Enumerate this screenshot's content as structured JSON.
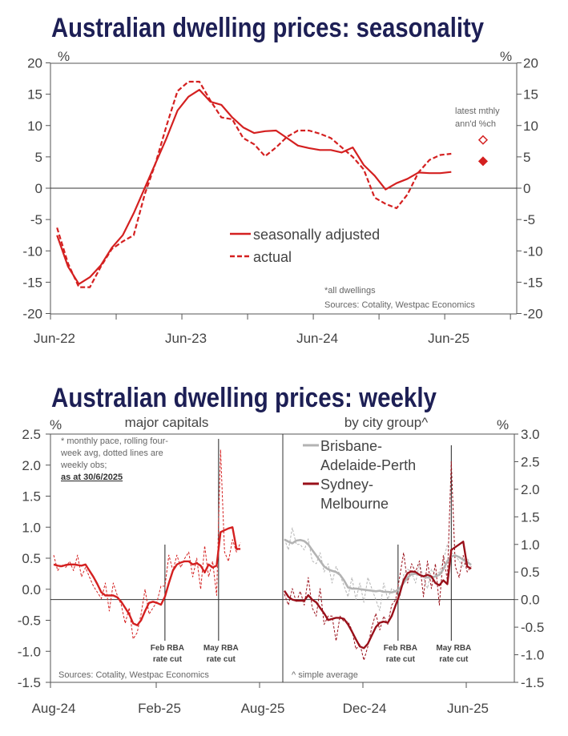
{
  "colors": {
    "red": "#d42020",
    "dark_red": "#99101a",
    "grey": "#b3b3b3",
    "title": "#1d1f55"
  },
  "chart_data": [
    {
      "type": "line",
      "title": "Australian dwelling prices: seasonality",
      "unit_left": "%",
      "unit_right": "%",
      "ylim": [
        -20,
        20
      ],
      "yticks": [
        "20",
        "15",
        "10",
        "5",
        "0",
        "-5",
        "-10",
        "-15",
        "-20"
      ],
      "xticks": [
        "Jun-22",
        "Jun-23",
        "Jun-24",
        "Jun-25"
      ],
      "x_start": "Jul-22",
      "x_frequency": "monthly",
      "series": [
        {
          "name": "seasonally adjusted",
          "style": "solid",
          "values": [
            -7.5,
            -12.5,
            -15.3,
            -14.2,
            -12.3,
            -9.5,
            -7.5,
            -4,
            0,
            4,
            8,
            12.4,
            14.6,
            15.7,
            13.8,
            13.3,
            11.3,
            9.7,
            8.8,
            9.1,
            9.2,
            8,
            6.8,
            6.4,
            6.1,
            6.1,
            5.7,
            6.5,
            3.7,
            2,
            -0.2,
            0.8,
            1.5,
            2.5,
            2.4,
            2.4,
            2.6
          ]
        },
        {
          "name": "actual",
          "style": "dashed",
          "values": [
            -6.3,
            -12,
            -15.8,
            -15.8,
            -12.5,
            -9.7,
            -8.5,
            -7.5,
            -1,
            4,
            10,
            15.5,
            17,
            17,
            14,
            11.3,
            11,
            8,
            7,
            5.1,
            6.5,
            8.2,
            9.2,
            9.2,
            8.7,
            8,
            6.5,
            5,
            3,
            -1.5,
            -2.5,
            -3.2,
            -1,
            2.5,
            4.5,
            5.3,
            5.5
          ]
        }
      ],
      "latest": {
        "label_line1": "latest mthly",
        "label_line2": "ann'd %ch",
        "actual": 7.7,
        "seasonally_adjusted": 4.3
      },
      "notes": [
        "*all dwellings",
        "Sources: Cotality, Westpac Economics"
      ]
    },
    {
      "type": "line",
      "title": "Australian dwelling prices: weekly",
      "panels": [
        {
          "subtitle": "major capitals",
          "unit": "%",
          "ylim": [
            -1.5,
            2.5
          ],
          "yticks": [
            "2.5",
            "2.0",
            "1.5",
            "1.0",
            "0.5",
            "0.0",
            "-0.5",
            "-1.0",
            "-1.5"
          ],
          "xticks": [
            "Aug-24",
            "Feb-25",
            "Aug-25"
          ],
          "series": [
            {
              "name": "major capitals (4-wk avg)",
              "style": "solid",
              "values": [
                0.4,
                0.38,
                0.37,
                0.39,
                0.4,
                0.4,
                0.39,
                0.38,
                0.4,
                0.3,
                0.2,
                0.08,
                -0.05,
                -0.1,
                -0.1,
                -0.1,
                -0.13,
                -0.2,
                -0.3,
                -0.4,
                -0.55,
                -0.58,
                -0.5,
                -0.35,
                -0.22,
                -0.2,
                -0.22,
                -0.25,
                -0.12,
                0.1,
                0.3,
                0.4,
                0.43,
                0.45,
                0.45,
                0.4,
                0.42,
                0.38,
                0.27,
                0.4,
                0.35,
                0.38,
                0.92,
                0.95,
                0.98,
                1.0,
                0.65,
                0.65
              ]
            },
            {
              "name": "major capitals (weekly obs)",
              "style": "dotted",
              "values": [
                0.55,
                0.3,
                0.4,
                0.35,
                0.45,
                0.3,
                0.55,
                0.2,
                0.35,
                0.2,
                0.05,
                -0.05,
                -0.15,
                0.1,
                -0.35,
                0.1,
                -0.1,
                -0.25,
                -0.55,
                -0.3,
                -0.8,
                -0.7,
                -0.4,
                0.0,
                -0.4,
                -0.3,
                -0.2,
                0.05,
                0.05,
                0.55,
                0.3,
                0.55,
                0.35,
                0.5,
                0.6,
                0.2,
                0.5,
                0.0,
                0.7,
                0.2,
                0.45,
                -0.1,
                2.25,
                0.6,
                0.45,
                0.8,
                0.6,
                0.75
              ]
            }
          ],
          "events": [
            {
              "label1": "Feb RBA",
              "label2": "rate cut",
              "week": 28
            },
            {
              "label1": "May RBA",
              "label2": "rate cut",
              "week": 41.5
            }
          ],
          "notes": [
            "* monthly pace, rolling four-",
            "week avg, dotted lines are",
            "weekly obs;"
          ],
          "as_at": "as at 30/6/2025",
          "source": "Sources: Cotality, Westpac Economics"
        },
        {
          "subtitle": "by city group^",
          "unit": "%",
          "ylim": [
            -1.5,
            3.0
          ],
          "yticks": [
            "3.0",
            "2.5",
            "2.0",
            "1.5",
            "1.0",
            "0.5",
            "0.0",
            "-0.5",
            "-1.0",
            "-1.5"
          ],
          "xticks": [
            "Dec-24",
            "Jun-25"
          ],
          "legend": [
            {
              "line1": "Brisbane-",
              "line2": "Adelaide-Perth"
            },
            {
              "line1": "Sydney-",
              "line2": "Melbourne"
            }
          ],
          "series": [
            {
              "name": "Brisbane-Adelaide-Perth",
              "style": "solid",
              "values": [
                1.09,
                1.05,
                1.02,
                1.07,
                1.08,
                1.06,
                1.0,
                0.9,
                0.8,
                0.7,
                0.6,
                0.55,
                0.52,
                0.5,
                0.45,
                0.35,
                0.22,
                0.2,
                0.2,
                0.19,
                0.18,
                0.17,
                0.16,
                0.15,
                0.16,
                0.14,
                0.14,
                0.13,
                0.15,
                0.2,
                0.3,
                0.4,
                0.46,
                0.47,
                0.45,
                0.42,
                0.4,
                0.4,
                0.42,
                0.45,
                0.55,
                0.7,
                0.78,
                0.8,
                0.77,
                0.72,
                0.68,
                0.63
              ]
            },
            {
              "name": "Brisbane-Adelaide-Perth weekly",
              "style": "dotted",
              "values": [
                1.1,
                0.9,
                1.3,
                1.0,
                1.0,
                0.9,
                1.1,
                0.7,
                0.65,
                0.85,
                0.5,
                0.65,
                0.3,
                0.6,
                0.45,
                0.25,
                0.05,
                0.4,
                0.0,
                0.3,
                -0.05,
                0.4,
                0.2,
                0.0,
                -0.2,
                0.3,
                0.0,
                0.2,
                0.15,
                0.0,
                0.45,
                0.55,
                0.5,
                0.3,
                0.65,
                0.4,
                0.2,
                0.55,
                0.45,
                0.5,
                0.7,
                1.0,
                0.85,
                0.8,
                0.7,
                0.6,
                0.75,
                0.6
              ]
            },
            {
              "name": "Sydney-Melbourne",
              "style": "solid",
              "values": [
                0.16,
                0.05,
                0.0,
                -0.02,
                -0.02,
                -0.02,
                0.08,
                0.0,
                -0.05,
                -0.15,
                -0.25,
                -0.37,
                -0.35,
                -0.33,
                -0.33,
                -0.35,
                -0.45,
                -0.58,
                -0.72,
                -0.85,
                -0.88,
                -0.8,
                -0.65,
                -0.5,
                -0.42,
                -0.4,
                -0.42,
                -0.3,
                -0.1,
                0.1,
                0.35,
                0.48,
                0.51,
                0.5,
                0.45,
                0.42,
                0.45,
                0.42,
                0.3,
                0.26,
                0.35,
                0.28,
                0.9,
                0.95,
                1.0,
                1.05,
                0.6,
                0.56
              ]
            },
            {
              "name": "Sydney-Melbourne weekly",
              "style": "dotted",
              "values": [
                0.1,
                -0.1,
                0.2,
                -0.05,
                0.15,
                -0.1,
                0.4,
                -0.15,
                -0.3,
                0.2,
                -0.45,
                -0.3,
                -0.3,
                -0.75,
                -0.3,
                -0.4,
                -0.4,
                -0.55,
                -0.9,
                -0.8,
                -1.1,
                -0.85,
                -0.5,
                -0.25,
                -0.55,
                -0.3,
                -0.45,
                -0.1,
                0.0,
                0.4,
                0.85,
                0.3,
                0.65,
                0.5,
                0.7,
                0.05,
                0.7,
                0.2,
                0.65,
                -0.1,
                0.8,
                0.35,
                2.5,
                0.6,
                0.4,
                0.8,
                0.5,
                0.6
              ]
            }
          ],
          "events": [
            {
              "label1": "Feb RBA",
              "label2": "rate cut",
              "week": 28.6
            },
            {
              "label1": "May RBA",
              "label2": "rate cut",
              "week": 42
            }
          ],
          "source": "^ simple average"
        }
      ]
    }
  ]
}
